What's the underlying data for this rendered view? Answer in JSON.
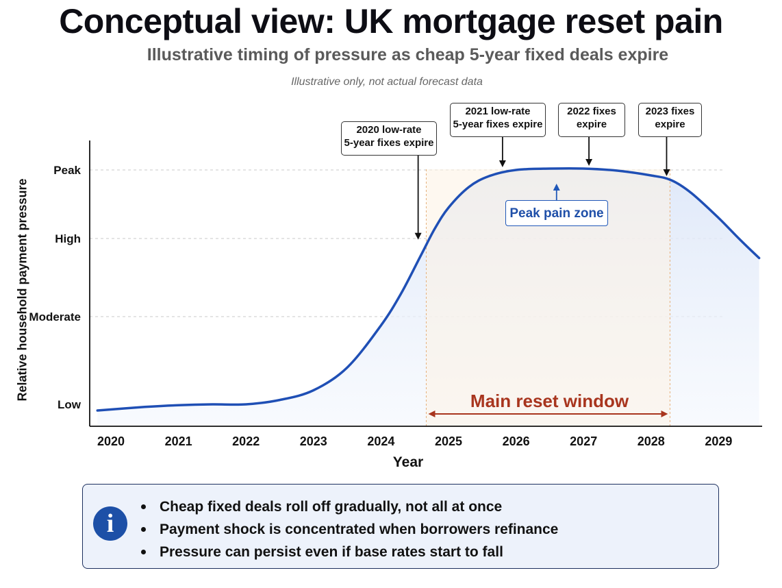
{
  "header": {
    "title": "Conceptual view: UK mortgage reset pain",
    "subtitle": "Illustrative timing of pressure as cheap 5-year fixed deals expire",
    "note": "Illustrative only, not actual forecast data"
  },
  "chart_data": {
    "type": "line",
    "xlabel": "Year",
    "ylabel": "Relative household payment pressure",
    "x_ticks": [
      2020,
      2021,
      2022,
      2023,
      2024,
      2025,
      2026,
      2027,
      2028,
      2029
    ],
    "xlim": [
      2019.85,
      2029.6
    ],
    "y_levels": [
      {
        "label": "Low",
        "value": 0
      },
      {
        "label": "Moderate",
        "value": 1
      },
      {
        "label": "High",
        "value": 2
      },
      {
        "label": "Peak",
        "value": 3
      }
    ],
    "ylim": [
      -0.15,
      3.3
    ],
    "grid": "horizontal dashed at levels",
    "series": [
      {
        "color": "#1f4fb5",
        "points": [
          [
            2019.8,
            -0.07
          ],
          [
            2020.5,
            -0.03
          ],
          [
            2021.0,
            -0.01
          ],
          [
            2021.5,
            0.0
          ],
          [
            2022.0,
            0.0
          ],
          [
            2022.5,
            0.05
          ],
          [
            2023.0,
            0.16
          ],
          [
            2023.5,
            0.42
          ],
          [
            2024.0,
            0.9
          ],
          [
            2024.3,
            1.3
          ],
          [
            2024.6,
            1.8
          ],
          [
            2024.8,
            2.15
          ],
          [
            2025.0,
            2.45
          ],
          [
            2025.3,
            2.75
          ],
          [
            2025.6,
            2.91
          ],
          [
            2026.0,
            3.0
          ],
          [
            2026.5,
            3.02
          ],
          [
            2027.0,
            3.02
          ],
          [
            2027.5,
            2.99
          ],
          [
            2028.0,
            2.92
          ],
          [
            2028.3,
            2.85
          ],
          [
            2028.6,
            2.66
          ],
          [
            2029.0,
            2.3
          ],
          [
            2029.3,
            2.0
          ],
          [
            2029.6,
            1.75
          ]
        ]
      }
    ],
    "shaded_window": {
      "start": 2024.67,
      "end": 2028.28,
      "label": "Main reset window"
    },
    "peak_zone": {
      "label": "Peak pain zone",
      "x": 2026.6,
      "arrow_to_y": 2.85
    },
    "annotations": [
      {
        "label": "2020 low-rate\n5-year fixes expire",
        "x": 2024.55,
        "y": 1.95
      },
      {
        "label": "2021 low-rate\n5-year fixes expire",
        "x": 2025.8,
        "y": 3.0
      },
      {
        "label": "2022 fixes\nexpire",
        "x": 2027.08,
        "y": 3.02
      },
      {
        "label": "2023 fixes\nexpire",
        "x": 2028.23,
        "y": 2.87
      }
    ],
    "colors": {
      "line": "#1f4fb5",
      "fill": "#dde8fa",
      "window_fill": "#fdf3e4",
      "window_border": "#e6b07a",
      "window_arrow": "#a8351e"
    }
  },
  "info_box": {
    "icon": "info-icon",
    "icon_glyph": "i",
    "items": [
      "Cheap fixed deals roll off gradually, not all at once",
      "Payment shock is concentrated when borrowers refinance",
      "Pressure can persist even if base rates start to fall"
    ]
  }
}
